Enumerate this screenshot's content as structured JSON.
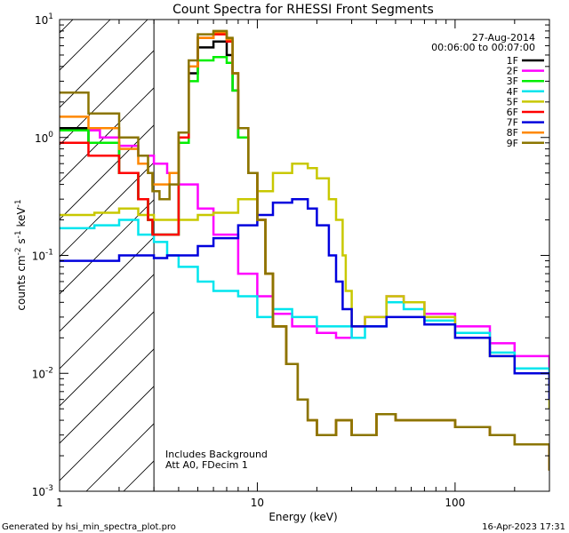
{
  "chart_data": {
    "type": "line",
    "title": "Count Spectra for RHESSI Front Segments",
    "xlabel": "Energy (keV)",
    "ylabel_parts": [
      "counts cm",
      "-2",
      " s",
      "-1",
      " keV",
      "-1"
    ],
    "xscale": "log",
    "yscale": "log",
    "xlim": [
      1,
      300
    ],
    "ylim": [
      0.001,
      10
    ],
    "x_ticks": [
      {
        "v": 1,
        "label": "1"
      },
      {
        "v": 10,
        "label": "10"
      },
      {
        "v": 100,
        "label": "100"
      }
    ],
    "y_ticks": [
      {
        "v": 10,
        "base": "10",
        "exp": "1"
      },
      {
        "v": 1,
        "base": "10",
        "exp": "0"
      },
      {
        "v": 0.1,
        "base": "10",
        "exp": "-1"
      },
      {
        "v": 0.01,
        "base": "10",
        "exp": "-2"
      },
      {
        "v": 0.001,
        "base": "10",
        "exp": "-3"
      }
    ],
    "hatch_limit": 3,
    "date": "27-Aug-2014",
    "time_range": "00:06:00 to 00:07:00",
    "annotations": [
      "Includes Background",
      "Att A0, FDecim 1"
    ],
    "footer_left": "Generated by hsi_min_spectra_plot.pro",
    "footer_right": "16-Apr-2023 17:31",
    "series": [
      {
        "name": "1F",
        "color": "#000000",
        "points": [
          [
            1.0,
            1.2
          ],
          [
            1.4,
            0.9
          ],
          [
            2.0,
            0.5
          ],
          [
            2.5,
            0.3
          ],
          [
            2.8,
            0.2
          ],
          [
            2.95,
            0.15
          ],
          [
            3.2,
            0.15
          ],
          [
            3.6,
            0.15
          ],
          [
            4.0,
            1.0
          ],
          [
            4.5,
            3.5
          ],
          [
            5.0,
            5.8
          ],
          [
            6.0,
            6.5
          ],
          [
            7.0,
            5.0
          ],
          [
            7.5,
            2.5
          ],
          [
            8.0,
            1.0
          ],
          [
            9.0,
            0.5
          ],
          [
            10.0,
            0.2
          ],
          [
            11.0,
            0.07
          ],
          [
            12.0,
            0.025
          ],
          [
            14.0,
            0.012
          ],
          [
            16.0,
            0.006
          ],
          [
            18.0,
            0.004
          ],
          [
            20.0,
            0.003
          ],
          [
            25.0,
            0.004
          ],
          [
            30.0,
            0.003
          ],
          [
            40.0,
            0.0045
          ],
          [
            50.0,
            0.004
          ],
          [
            70.0,
            0.004
          ],
          [
            100.0,
            0.0035
          ],
          [
            150.0,
            0.003
          ],
          [
            200.0,
            0.0025
          ],
          [
            300.0,
            0.0015
          ]
        ]
      },
      {
        "name": "2F",
        "color": "#ff00ff",
        "points": [
          [
            1.0,
            1.15
          ],
          [
            1.6,
            1.0
          ],
          [
            2.0,
            0.85
          ],
          [
            2.5,
            0.7
          ],
          [
            3.0,
            0.6
          ],
          [
            3.5,
            0.5
          ],
          [
            4.0,
            0.4
          ],
          [
            5.0,
            0.25
          ],
          [
            6.0,
            0.15
          ],
          [
            8.0,
            0.07
          ],
          [
            10.0,
            0.045
          ],
          [
            12.0,
            0.032
          ],
          [
            15.0,
            0.025
          ],
          [
            20.0,
            0.022
          ],
          [
            25.0,
            0.02
          ],
          [
            30.0,
            0.025
          ],
          [
            35.0,
            0.03
          ],
          [
            45.0,
            0.045
          ],
          [
            55.0,
            0.04
          ],
          [
            70.0,
            0.032
          ],
          [
            100.0,
            0.025
          ],
          [
            150.0,
            0.018
          ],
          [
            200.0,
            0.014
          ],
          [
            300.0,
            0.008
          ]
        ]
      },
      {
        "name": "3F",
        "color": "#00ee00",
        "points": [
          [
            1.0,
            1.15
          ],
          [
            1.4,
            0.9
          ],
          [
            2.0,
            0.5
          ],
          [
            2.5,
            0.3
          ],
          [
            2.8,
            0.2
          ],
          [
            2.95,
            0.15
          ],
          [
            3.2,
            0.15
          ],
          [
            3.6,
            0.15
          ],
          [
            4.0,
            0.9
          ],
          [
            4.5,
            3.0
          ],
          [
            5.0,
            4.5
          ],
          [
            6.0,
            4.8
          ],
          [
            7.0,
            4.3
          ],
          [
            7.5,
            2.5
          ],
          [
            8.0,
            1.0
          ],
          [
            9.0,
            0.5
          ],
          [
            10.0,
            0.2
          ],
          [
            11.0,
            0.07
          ],
          [
            12.0,
            0.025
          ],
          [
            14.0,
            0.012
          ],
          [
            16.0,
            0.006
          ],
          [
            18.0,
            0.004
          ],
          [
            20.0,
            0.003
          ],
          [
            25.0,
            0.004
          ],
          [
            30.0,
            0.003
          ],
          [
            40.0,
            0.0045
          ],
          [
            50.0,
            0.004
          ],
          [
            70.0,
            0.004
          ],
          [
            100.0,
            0.0035
          ],
          [
            150.0,
            0.003
          ],
          [
            200.0,
            0.0025
          ],
          [
            300.0,
            0.0015
          ]
        ]
      },
      {
        "name": "4F",
        "color": "#00e5ee",
        "points": [
          [
            1.0,
            0.17
          ],
          [
            1.5,
            0.18
          ],
          [
            2.0,
            0.2
          ],
          [
            2.5,
            0.15
          ],
          [
            3.0,
            0.13
          ],
          [
            3.5,
            0.1
          ],
          [
            4.0,
            0.08
          ],
          [
            5.0,
            0.06
          ],
          [
            6.0,
            0.05
          ],
          [
            8.0,
            0.045
          ],
          [
            10.0,
            0.03
          ],
          [
            12.0,
            0.035
          ],
          [
            15.0,
            0.03
          ],
          [
            20.0,
            0.025
          ],
          [
            25.0,
            0.025
          ],
          [
            30.0,
            0.02
          ],
          [
            35.0,
            0.025
          ],
          [
            45.0,
            0.04
          ],
          [
            55.0,
            0.035
          ],
          [
            70.0,
            0.028
          ],
          [
            100.0,
            0.022
          ],
          [
            150.0,
            0.015
          ],
          [
            200.0,
            0.011
          ],
          [
            300.0,
            0.007
          ]
        ]
      },
      {
        "name": "5F",
        "color": "#c8c800",
        "points": [
          [
            1.0,
            0.22
          ],
          [
            1.5,
            0.23
          ],
          [
            2.0,
            0.25
          ],
          [
            2.5,
            0.22
          ],
          [
            3.0,
            0.2
          ],
          [
            3.5,
            0.2
          ],
          [
            4.0,
            0.2
          ],
          [
            5.0,
            0.22
          ],
          [
            6.0,
            0.23
          ],
          [
            8.0,
            0.3
          ],
          [
            10.0,
            0.35
          ],
          [
            12.0,
            0.5
          ],
          [
            15.0,
            0.6
          ],
          [
            18.0,
            0.55
          ],
          [
            20.0,
            0.45
          ],
          [
            23.0,
            0.3
          ],
          [
            25.0,
            0.2
          ],
          [
            27.0,
            0.1
          ],
          [
            28.0,
            0.05
          ],
          [
            30.0,
            0.025
          ],
          [
            35.0,
            0.03
          ],
          [
            45.0,
            0.045
          ],
          [
            55.0,
            0.04
          ],
          [
            70.0,
            0.03
          ],
          [
            100.0,
            0.02
          ],
          [
            150.0,
            0.014
          ],
          [
            200.0,
            0.01
          ],
          [
            300.0,
            0.005
          ]
        ]
      },
      {
        "name": "6F",
        "color": "#ff0000",
        "points": [
          [
            1.0,
            0.9
          ],
          [
            1.4,
            0.7
          ],
          [
            2.0,
            0.5
          ],
          [
            2.5,
            0.3
          ],
          [
            2.8,
            0.2
          ],
          [
            2.95,
            0.15
          ],
          [
            3.2,
            0.15
          ],
          [
            3.6,
            0.15
          ],
          [
            4.0,
            1.0
          ],
          [
            4.5,
            4.0
          ],
          [
            5.0,
            7.0
          ],
          [
            6.0,
            7.5
          ],
          [
            7.0,
            6.5
          ],
          [
            7.5,
            3.5
          ],
          [
            8.0,
            1.2
          ],
          [
            9.0,
            0.5
          ],
          [
            10.0,
            0.2
          ],
          [
            11.0,
            0.07
          ],
          [
            12.0,
            0.025
          ],
          [
            14.0,
            0.012
          ],
          [
            16.0,
            0.006
          ],
          [
            18.0,
            0.004
          ],
          [
            20.0,
            0.003
          ],
          [
            25.0,
            0.004
          ],
          [
            30.0,
            0.003
          ],
          [
            40.0,
            0.0045
          ],
          [
            50.0,
            0.004
          ],
          [
            70.0,
            0.004
          ],
          [
            100.0,
            0.0035
          ],
          [
            150.0,
            0.003
          ],
          [
            200.0,
            0.0025
          ],
          [
            300.0,
            0.0015
          ]
        ]
      },
      {
        "name": "7F",
        "color": "#0000dd",
        "points": [
          [
            1.0,
            0.09
          ],
          [
            1.5,
            0.09
          ],
          [
            2.0,
            0.1
          ],
          [
            2.5,
            0.1
          ],
          [
            3.0,
            0.095
          ],
          [
            3.5,
            0.1
          ],
          [
            4.0,
            0.1
          ],
          [
            5.0,
            0.12
          ],
          [
            6.0,
            0.14
          ],
          [
            8.0,
            0.18
          ],
          [
            10.0,
            0.22
          ],
          [
            12.0,
            0.28
          ],
          [
            15.0,
            0.3
          ],
          [
            18.0,
            0.25
          ],
          [
            20.0,
            0.18
          ],
          [
            23.0,
            0.1
          ],
          [
            25.0,
            0.06
          ],
          [
            27.0,
            0.035
          ],
          [
            30.0,
            0.025
          ],
          [
            35.0,
            0.025
          ],
          [
            45.0,
            0.03
          ],
          [
            55.0,
            0.03
          ],
          [
            70.0,
            0.026
          ],
          [
            100.0,
            0.02
          ],
          [
            150.0,
            0.014
          ],
          [
            200.0,
            0.01
          ],
          [
            300.0,
            0.006
          ]
        ]
      },
      {
        "name": "8F",
        "color": "#ff8800",
        "points": [
          [
            1.0,
            1.5
          ],
          [
            1.4,
            1.2
          ],
          [
            2.0,
            0.8
          ],
          [
            2.5,
            0.6
          ],
          [
            2.8,
            0.5
          ],
          [
            2.95,
            0.4
          ],
          [
            3.2,
            0.4
          ],
          [
            3.6,
            0.5
          ],
          [
            4.0,
            1.1
          ],
          [
            4.5,
            4.0
          ],
          [
            5.0,
            7.0
          ],
          [
            6.0,
            7.8
          ],
          [
            7.0,
            6.8
          ],
          [
            7.5,
            3.5
          ],
          [
            8.0,
            1.2
          ],
          [
            9.0,
            0.5
          ],
          [
            10.0,
            0.2
          ],
          [
            11.0,
            0.07
          ],
          [
            12.0,
            0.025
          ],
          [
            14.0,
            0.012
          ],
          [
            16.0,
            0.006
          ],
          [
            18.0,
            0.004
          ],
          [
            20.0,
            0.003
          ],
          [
            25.0,
            0.004
          ],
          [
            30.0,
            0.003
          ],
          [
            40.0,
            0.0045
          ],
          [
            50.0,
            0.004
          ],
          [
            70.0,
            0.004
          ],
          [
            100.0,
            0.0035
          ],
          [
            150.0,
            0.003
          ],
          [
            200.0,
            0.0025
          ],
          [
            300.0,
            0.0015
          ]
        ]
      },
      {
        "name": "9F",
        "color": "#8b7500",
        "points": [
          [
            1.0,
            2.4
          ],
          [
            1.4,
            1.6
          ],
          [
            2.0,
            1.0
          ],
          [
            2.5,
            0.7
          ],
          [
            2.8,
            0.5
          ],
          [
            2.95,
            0.35
          ],
          [
            3.2,
            0.3
          ],
          [
            3.6,
            0.4
          ],
          [
            4.0,
            1.1
          ],
          [
            4.5,
            4.5
          ],
          [
            5.0,
            7.5
          ],
          [
            6.0,
            8.0
          ],
          [
            7.0,
            7.0
          ],
          [
            7.5,
            3.5
          ],
          [
            8.0,
            1.2
          ],
          [
            9.0,
            0.5
          ],
          [
            10.0,
            0.2
          ],
          [
            11.0,
            0.07
          ],
          [
            12.0,
            0.025
          ],
          [
            14.0,
            0.012
          ],
          [
            16.0,
            0.006
          ],
          [
            18.0,
            0.004
          ],
          [
            20.0,
            0.003
          ],
          [
            25.0,
            0.004
          ],
          [
            30.0,
            0.003
          ],
          [
            40.0,
            0.0045
          ],
          [
            50.0,
            0.004
          ],
          [
            70.0,
            0.004
          ],
          [
            100.0,
            0.0035
          ],
          [
            150.0,
            0.003
          ],
          [
            200.0,
            0.0025
          ],
          [
            300.0,
            0.0015
          ]
        ]
      }
    ]
  }
}
